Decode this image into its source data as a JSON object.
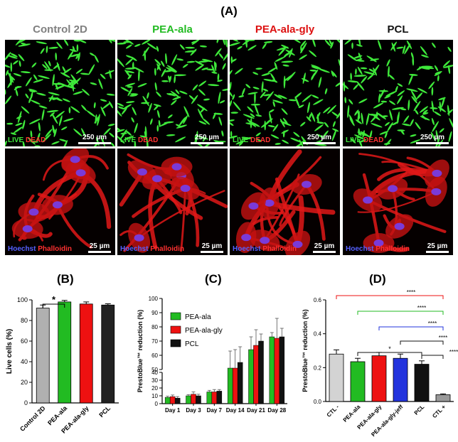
{
  "figure": {
    "panel_a_label": "(A)",
    "panel_b_label": "(B)",
    "panel_c_label": "(C)",
    "panel_d_label": "(D)"
  },
  "columns": [
    {
      "title": "Control 2D",
      "color": "#808080"
    },
    {
      "title": "PEA-ala",
      "color": "#22bb22"
    },
    {
      "title": "PEA-ala-gly",
      "color": "#dd1111"
    },
    {
      "title": "PCL",
      "color": "#111111"
    }
  ],
  "micrographs": {
    "top_row": {
      "stain_live": "LIVE",
      "stain_dead": "DEAD",
      "scale": "250 µm"
    },
    "bottom_row": {
      "stain_hoechst": "Hoechst",
      "stain_phalloidin": "Phalloidin",
      "scale": "25 µm"
    }
  },
  "chart_data": [
    {
      "id": "B",
      "type": "bar",
      "categories": [
        "Control 2D",
        "PEA-ala",
        "PEA-ala-gly",
        "PCL"
      ],
      "values": [
        92,
        98,
        96,
        95
      ],
      "errors": [
        3,
        1.5,
        2,
        1.2
      ],
      "colors": [
        "#b0b0b0",
        "#22bb22",
        "#ee1111",
        "#222222"
      ],
      "ylabel": "Live cells (%)",
      "ylim": [
        0,
        100
      ],
      "yticks": [
        0,
        20,
        40,
        60,
        80,
        100
      ],
      "annotations": [
        {
          "from": 0,
          "to": 1,
          "label": "*"
        }
      ]
    },
    {
      "id": "C",
      "type": "bar",
      "categories": [
        "Day 1",
        "Day 3",
        "Day 7",
        "Day 14",
        "Day 21",
        "Day 28"
      ],
      "series": [
        {
          "name": "PEA-ala",
          "color": "#22bb22",
          "values": [
            8,
            10,
            15,
            51,
            64,
            73
          ],
          "errors": [
            1.5,
            1.5,
            2,
            12,
            9,
            3
          ]
        },
        {
          "name": "PEA-ala-gly",
          "color": "#ee1111",
          "values": [
            9,
            12,
            15,
            51,
            67,
            72
          ],
          "errors": [
            2,
            3,
            3,
            13,
            11,
            14
          ]
        },
        {
          "name": "PCL",
          "color": "#111111",
          "values": [
            7,
            10,
            16,
            55,
            70,
            73
          ],
          "errors": [
            2,
            2,
            2,
            11,
            5,
            6
          ]
        }
      ],
      "ylabel": "PrestoBlue™ reduction (%)",
      "ylim": [
        0,
        100
      ],
      "yticks_lower": [
        0,
        10,
        20,
        30,
        40
      ],
      "yticks_upper": [
        50,
        60,
        70,
        80,
        90,
        100
      ],
      "legend": "top-left"
    },
    {
      "id": "D",
      "type": "bar",
      "categories": [
        "CTL -",
        "PEA-ala",
        "PEA-ala-gly",
        "PEA-ala-gly-jeff",
        "PCL",
        "CTL +"
      ],
      "values": [
        0.28,
        0.235,
        0.27,
        0.255,
        0.22,
        0.04
      ],
      "errors": [
        0.025,
        0.02,
        0.02,
        0.025,
        0.02,
        0.005
      ],
      "colors": [
        "#d3d3d3",
        "#22bb22",
        "#ee1111",
        "#2233dd",
        "#111111",
        "#999999"
      ],
      "ylabel": "PrestoBlue™ reduction (%)",
      "ylim": [
        0,
        0.6
      ],
      "yticks": [
        0.0,
        0.2,
        0.4,
        0.6
      ],
      "annotations": [
        {
          "from": 0,
          "to": 5,
          "label": "****",
          "color": "#ee1111"
        },
        {
          "from": 1,
          "to": 5,
          "label": "****",
          "color": "#22bb22"
        },
        {
          "from": 2,
          "to": 5,
          "label": "****",
          "color": "#2233dd"
        },
        {
          "from": 3,
          "to": 5,
          "label": "****",
          "color": "#111111"
        },
        {
          "from": 4,
          "to": 5,
          "label": "****",
          "color": "#111111"
        },
        {
          "from": 1,
          "to": 4,
          "label": "*",
          "color": "#111111"
        }
      ]
    }
  ]
}
